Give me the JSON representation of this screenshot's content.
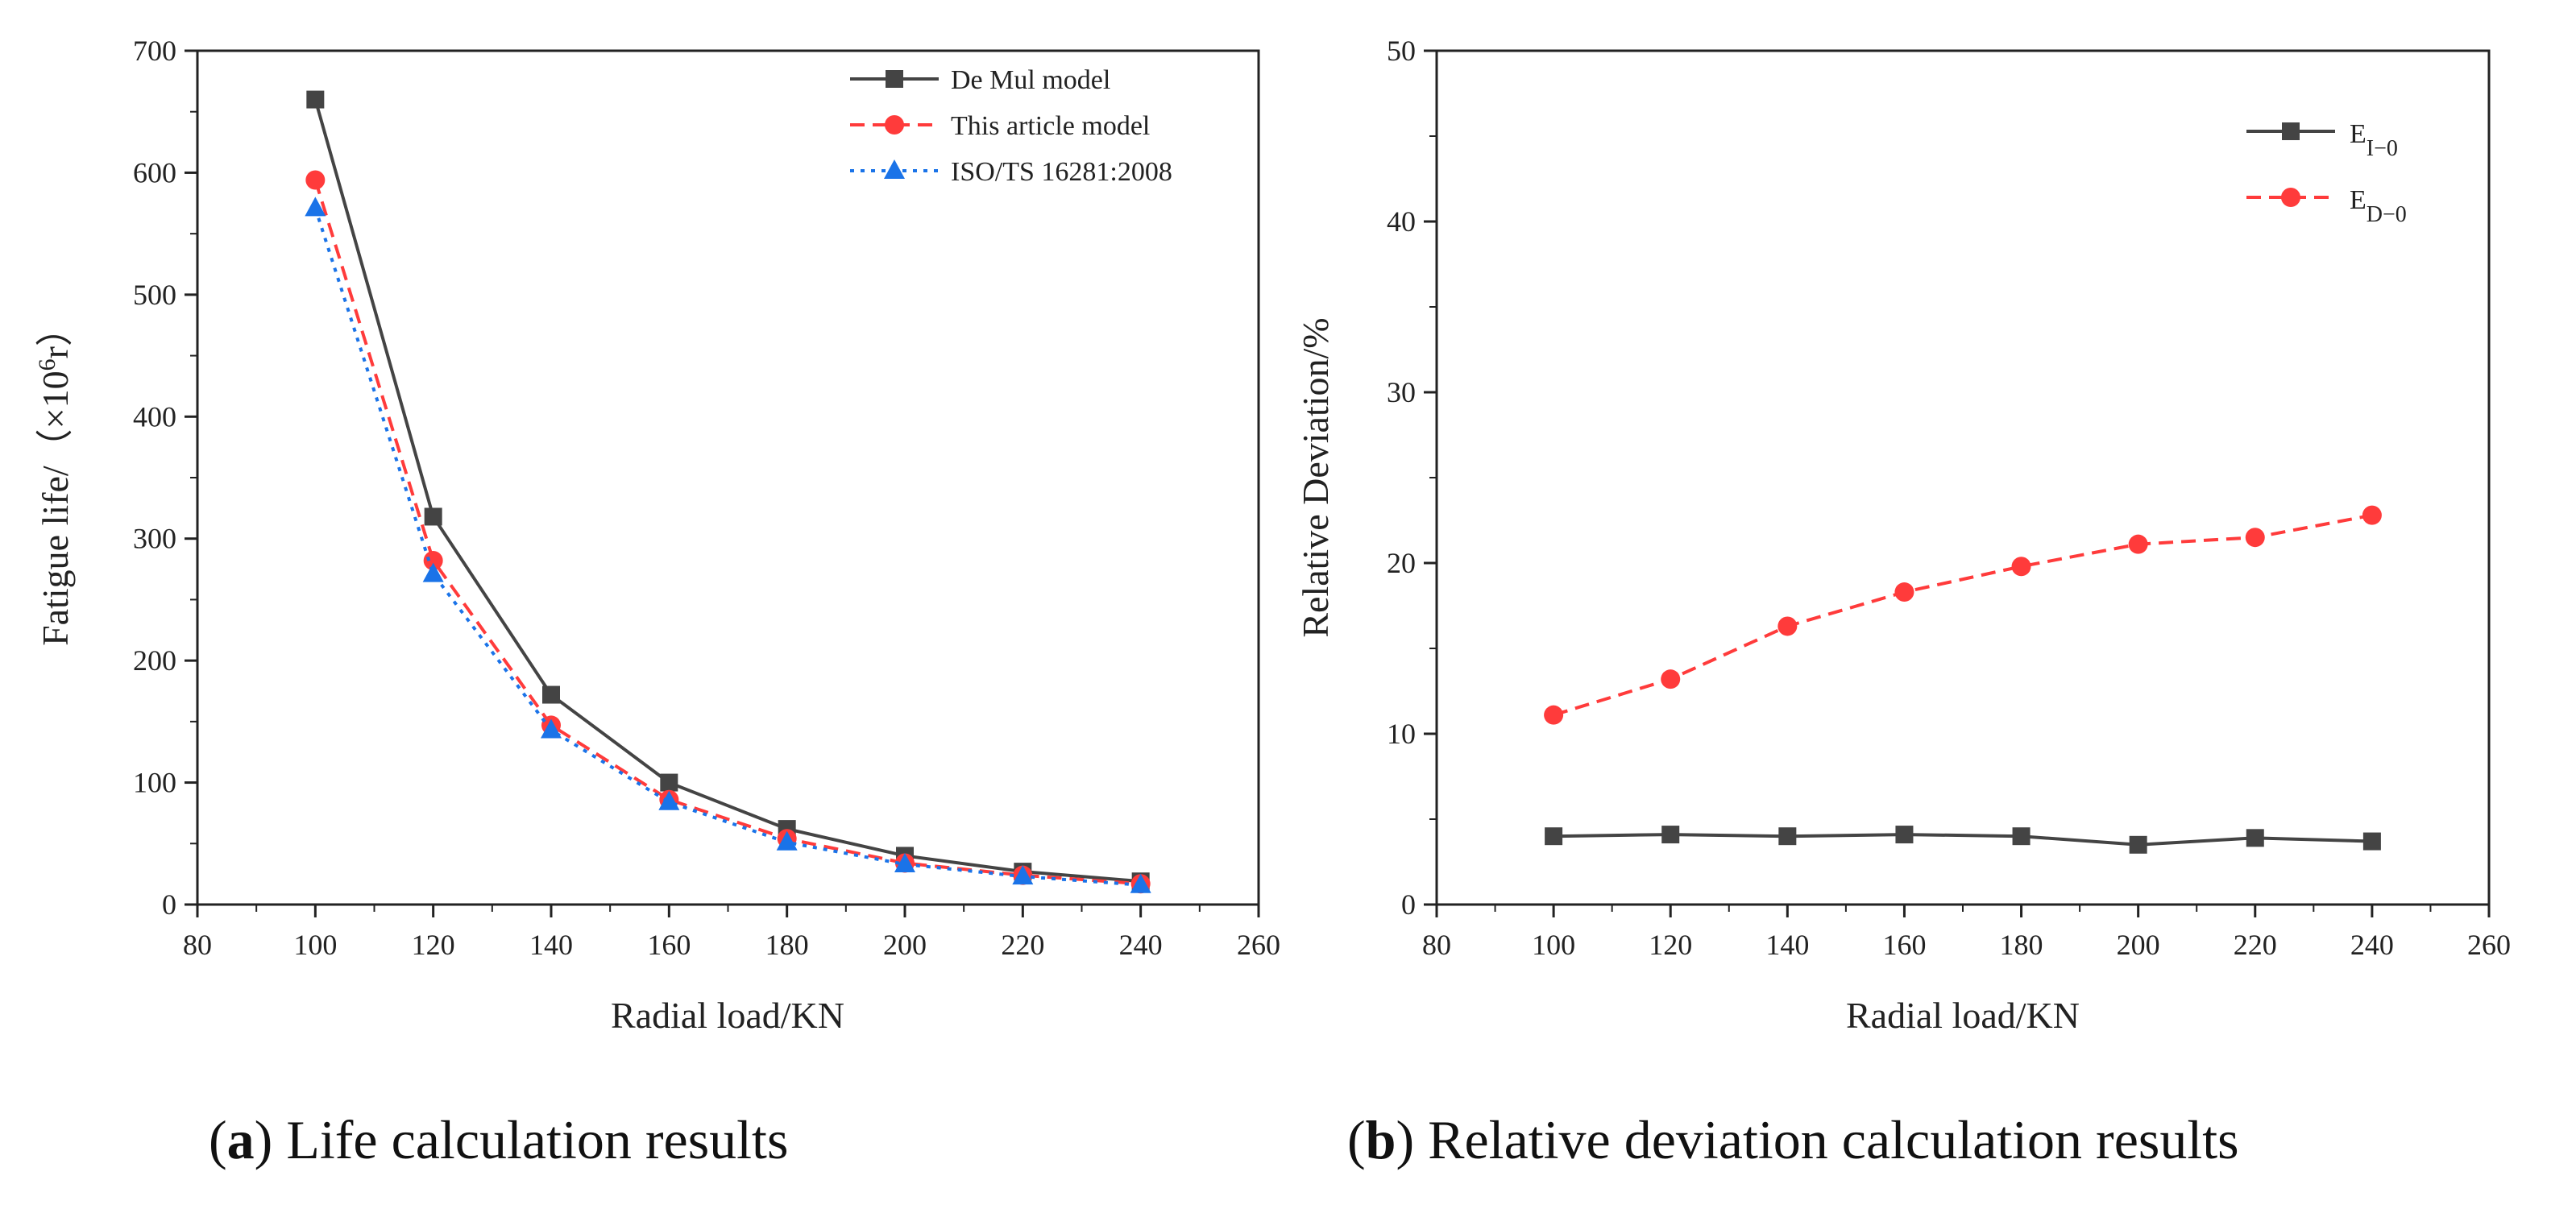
{
  "chart_data": [
    {
      "type": "line",
      "panel": "a",
      "x": [
        100,
        120,
        140,
        160,
        180,
        200,
        220,
        240
      ],
      "xlabel": "Radial load/KN",
      "ylabel_main": "Fatigue life/（×10",
      "ylabel_sup": "6",
      "ylabel_tail": "r）",
      "xlim": [
        80,
        260
      ],
      "ylim": [
        0,
        700
      ],
      "xticks": [
        80,
        100,
        120,
        140,
        160,
        180,
        200,
        220,
        240,
        260
      ],
      "yticks": [
        0,
        100,
        200,
        300,
        400,
        500,
        600,
        700
      ],
      "grid": false,
      "legend_position": "top-right",
      "series": [
        {
          "name": "De Mul model",
          "values": [
            660,
            318,
            172,
            100,
            62,
            40,
            27,
            19
          ],
          "color": "#444444",
          "marker": "square",
          "dash": "solid"
        },
        {
          "name": "This article model",
          "values": [
            594,
            282,
            147,
            86,
            54,
            34,
            24,
            17
          ],
          "color": "#ff3b3b",
          "marker": "circle",
          "dash": "dashed"
        },
        {
          "name": "ISO/TS 16281:2008",
          "values": [
            571,
            271,
            143,
            84,
            51,
            33,
            23,
            16
          ],
          "color": "#1a73e8",
          "marker": "triangle",
          "dash": "dotted"
        }
      ],
      "caption_letter": "a",
      "caption_text": " Life calculation results"
    },
    {
      "type": "line",
      "panel": "b",
      "x": [
        100,
        120,
        140,
        160,
        180,
        200,
        220,
        240
      ],
      "xlabel": "Radial load/KN",
      "ylabel": "Relative Deviation/%",
      "xlim": [
        80,
        260
      ],
      "ylim": [
        0,
        50
      ],
      "xticks": [
        80,
        100,
        120,
        140,
        160,
        180,
        200,
        220,
        240,
        260
      ],
      "yticks": [
        0,
        10,
        20,
        30,
        40,
        50
      ],
      "grid": false,
      "legend_position": "top-right",
      "series": [
        {
          "name_main": "E",
          "name_sub": "I−0",
          "values": [
            4.0,
            4.1,
            4.0,
            4.1,
            4.0,
            3.5,
            3.9,
            3.7
          ],
          "color": "#444444",
          "marker": "square",
          "dash": "solid"
        },
        {
          "name_main": "E",
          "name_sub": "D−0",
          "values": [
            11.1,
            13.2,
            16.3,
            18.3,
            19.8,
            21.1,
            21.5,
            22.8
          ],
          "color": "#ff3b3b",
          "marker": "circle",
          "dash": "dashed"
        }
      ],
      "caption_letter": "b",
      "caption_text": " Relative deviation calculation results"
    }
  ]
}
